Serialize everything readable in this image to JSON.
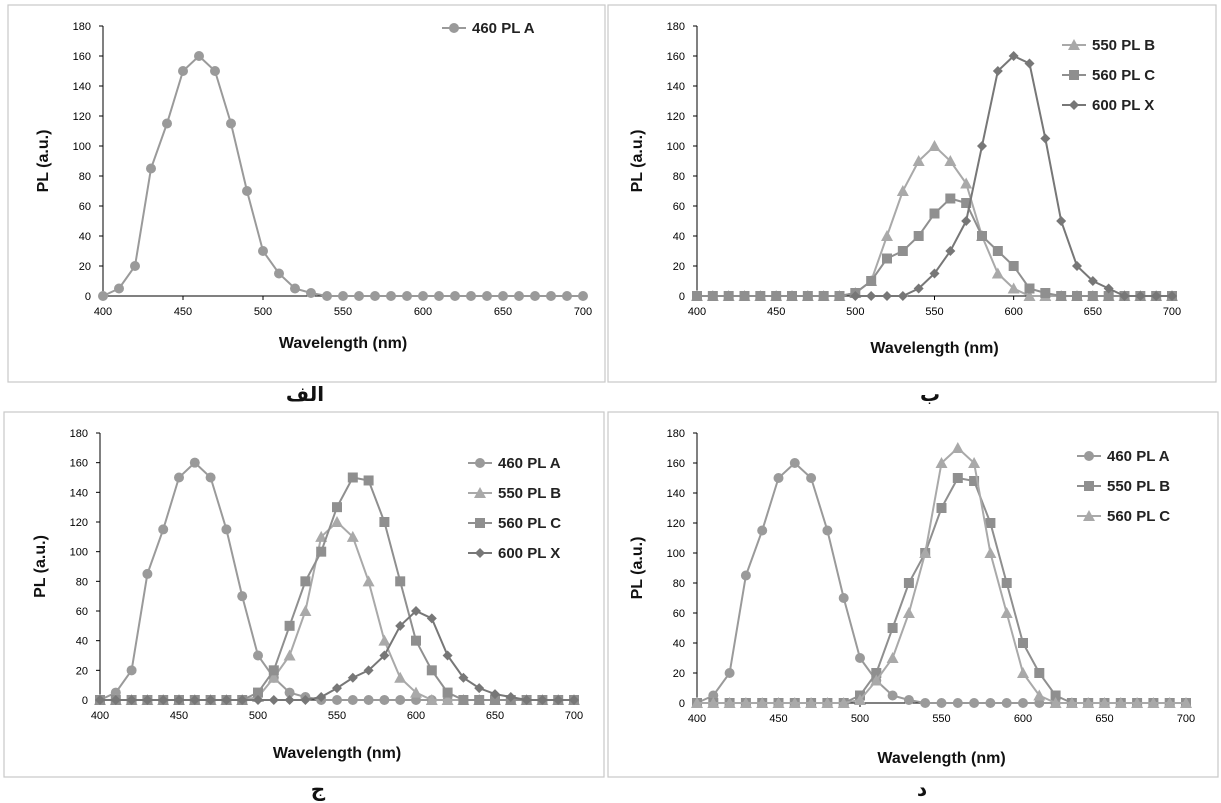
{
  "colors": {
    "series_a": "#9a9a9a",
    "series_b": "#a9a9a9",
    "series_c": "#8f8f8f",
    "series_x": "#777777",
    "frame": "#c8c8c8"
  },
  "chart_data": [
    {
      "type": "line",
      "caption": "الف",
      "xlabel": "Wavelength (nm)",
      "ylabel": "PL (a.u.)",
      "xlim": [
        400,
        700
      ],
      "ylim": [
        0,
        180
      ],
      "xticks": [
        400,
        450,
        500,
        550,
        600,
        650,
        700
      ],
      "yticks": [
        0,
        20,
        40,
        60,
        80,
        100,
        120,
        140,
        160,
        180
      ],
      "legend_position": "top-right",
      "series": [
        {
          "name": "460 PL A",
          "marker": "circle",
          "color_key": "series_a",
          "x": [
            400,
            410,
            420,
            430,
            440,
            450,
            460,
            470,
            480,
            490,
            500,
            510,
            520,
            530,
            540,
            550,
            560,
            570,
            580,
            590,
            600,
            610,
            620,
            630,
            640,
            650,
            660,
            670,
            680,
            690,
            700
          ],
          "y": [
            0,
            5,
            20,
            85,
            115,
            150,
            160,
            150,
            115,
            70,
            30,
            15,
            5,
            2,
            0,
            0,
            0,
            0,
            0,
            0,
            0,
            0,
            0,
            0,
            0,
            0,
            0,
            0,
            0,
            0,
            0
          ]
        }
      ]
    },
    {
      "type": "line",
      "caption": "ب",
      "xlabel": "Wavelength (nm)",
      "ylabel": "PL (a.u.)",
      "xlim": [
        400,
        700
      ],
      "ylim": [
        0,
        180
      ],
      "xticks": [
        400,
        450,
        500,
        550,
        600,
        650,
        700
      ],
      "yticks": [
        0,
        20,
        40,
        60,
        80,
        100,
        120,
        140,
        160,
        180
      ],
      "legend_position": "top-right",
      "series": [
        {
          "name": "550 PL B",
          "marker": "triangle",
          "color_key": "series_b",
          "x": [
            400,
            410,
            420,
            430,
            440,
            450,
            460,
            470,
            480,
            490,
            500,
            510,
            520,
            530,
            540,
            550,
            560,
            570,
            580,
            590,
            600,
            610,
            620,
            630,
            640,
            650,
            660,
            670,
            680,
            690,
            700
          ],
          "y": [
            0,
            0,
            0,
            0,
            0,
            0,
            0,
            0,
            0,
            0,
            2,
            10,
            40,
            70,
            90,
            100,
            90,
            75,
            40,
            15,
            5,
            0,
            0,
            0,
            0,
            0,
            0,
            0,
            0,
            0,
            0
          ]
        },
        {
          "name": "560 PL C",
          "marker": "square",
          "color_key": "series_c",
          "x": [
            400,
            410,
            420,
            430,
            440,
            450,
            460,
            470,
            480,
            490,
            500,
            510,
            520,
            530,
            540,
            550,
            560,
            570,
            580,
            590,
            600,
            610,
            620,
            630,
            640,
            650,
            660,
            670,
            680,
            690,
            700
          ],
          "y": [
            0,
            0,
            0,
            0,
            0,
            0,
            0,
            0,
            0,
            0,
            2,
            10,
            25,
            30,
            40,
            55,
            65,
            62,
            40,
            30,
            20,
            5,
            2,
            0,
            0,
            0,
            0,
            0,
            0,
            0,
            0
          ]
        },
        {
          "name": "600 PL X",
          "marker": "diamond",
          "color_key": "series_x",
          "x": [
            500,
            510,
            520,
            530,
            540,
            550,
            560,
            570,
            580,
            590,
            600,
            610,
            620,
            630,
            640,
            650,
            660,
            670,
            680,
            690,
            700
          ],
          "y": [
            0,
            0,
            0,
            0,
            5,
            15,
            30,
            50,
            100,
            150,
            160,
            155,
            105,
            50,
            20,
            10,
            5,
            0,
            0,
            0,
            0
          ]
        }
      ]
    },
    {
      "type": "line",
      "caption": "ج",
      "xlabel": "Wavelength (nm)",
      "ylabel": "PL (a.u.)",
      "xlim": [
        400,
        700
      ],
      "ylim": [
        0,
        180
      ],
      "xticks": [
        400,
        450,
        500,
        550,
        600,
        650,
        700
      ],
      "yticks": [
        0,
        20,
        40,
        60,
        80,
        100,
        120,
        140,
        160,
        180
      ],
      "legend_position": "top-right",
      "series": [
        {
          "name": "460 PL A",
          "marker": "circle",
          "color_key": "series_a",
          "x": [
            400,
            410,
            420,
            430,
            440,
            450,
            460,
            470,
            480,
            490,
            500,
            510,
            520,
            530,
            540,
            550,
            560,
            570,
            580,
            590,
            600,
            610,
            620,
            630,
            640,
            650,
            660,
            670,
            680,
            690,
            700
          ],
          "y": [
            0,
            5,
            20,
            85,
            115,
            150,
            160,
            150,
            115,
            70,
            30,
            15,
            5,
            2,
            0,
            0,
            0,
            0,
            0,
            0,
            0,
            0,
            0,
            0,
            0,
            0,
            0,
            0,
            0,
            0,
            0
          ]
        },
        {
          "name": "550 PL B",
          "marker": "triangle",
          "color_key": "series_b",
          "x": [
            400,
            410,
            420,
            430,
            440,
            450,
            460,
            470,
            480,
            490,
            500,
            510,
            520,
            530,
            540,
            550,
            560,
            570,
            580,
            590,
            600,
            610,
            620,
            630,
            640,
            650,
            660,
            670,
            680,
            690,
            700
          ],
          "y": [
            0,
            0,
            0,
            0,
            0,
            0,
            0,
            0,
            0,
            0,
            2,
            15,
            30,
            60,
            110,
            120,
            110,
            80,
            40,
            15,
            5,
            0,
            0,
            0,
            0,
            0,
            0,
            0,
            0,
            0,
            0
          ]
        },
        {
          "name": "560 PL C",
          "marker": "square",
          "color_key": "series_c",
          "x": [
            400,
            410,
            420,
            430,
            440,
            450,
            460,
            470,
            480,
            490,
            500,
            510,
            520,
            530,
            540,
            550,
            560,
            570,
            580,
            590,
            600,
            610,
            620,
            630,
            640,
            650,
            660,
            670,
            680,
            690,
            700
          ],
          "y": [
            0,
            0,
            0,
            0,
            0,
            0,
            0,
            0,
            0,
            0,
            5,
            20,
            50,
            80,
            100,
            130,
            150,
            148,
            120,
            80,
            40,
            20,
            5,
            0,
            0,
            0,
            0,
            0,
            0,
            0,
            0
          ]
        },
        {
          "name": "600 PL X",
          "marker": "diamond",
          "color_key": "series_x",
          "x": [
            400,
            410,
            420,
            430,
            440,
            450,
            460,
            470,
            480,
            490,
            500,
            510,
            520,
            530,
            540,
            550,
            560,
            570,
            580,
            590,
            600,
            610,
            620,
            630,
            640,
            650,
            660,
            670,
            680,
            690,
            700
          ],
          "y": [
            0,
            0,
            0,
            0,
            0,
            0,
            0,
            0,
            0,
            0,
            0,
            0,
            0,
            0,
            2,
            8,
            15,
            20,
            30,
            50,
            60,
            55,
            30,
            15,
            8,
            4,
            2,
            0,
            0,
            0,
            0
          ]
        }
      ]
    },
    {
      "type": "line",
      "caption": "د",
      "xlabel": "Wavelength (nm)",
      "ylabel": "PL (a.u.)",
      "xlim": [
        400,
        700
      ],
      "ylim": [
        0,
        180
      ],
      "xticks": [
        400,
        450,
        500,
        550,
        600,
        650,
        700
      ],
      "yticks": [
        0,
        20,
        40,
        60,
        80,
        100,
        120,
        140,
        160,
        180
      ],
      "legend_position": "top-right",
      "series": [
        {
          "name": "460 PL A",
          "marker": "circle",
          "color_key": "series_a",
          "x": [
            400,
            410,
            420,
            430,
            440,
            450,
            460,
            470,
            480,
            490,
            500,
            510,
            520,
            530,
            540,
            550,
            560,
            570,
            580,
            590,
            600,
            610,
            620,
            630,
            640,
            650,
            660,
            670,
            680,
            690,
            700
          ],
          "y": [
            0,
            5,
            20,
            85,
            115,
            150,
            160,
            150,
            115,
            70,
            30,
            15,
            5,
            2,
            0,
            0,
            0,
            0,
            0,
            0,
            0,
            0,
            0,
            0,
            0,
            0,
            0,
            0,
            0,
            0,
            0
          ]
        },
        {
          "name": "550 PL B",
          "marker": "square",
          "color_key": "series_c",
          "x": [
            400,
            410,
            420,
            430,
            440,
            450,
            460,
            470,
            480,
            490,
            500,
            510,
            520,
            530,
            540,
            550,
            560,
            570,
            580,
            590,
            600,
            610,
            620,
            630,
            640,
            650,
            660,
            670,
            680,
            690,
            700
          ],
          "y": [
            0,
            0,
            0,
            0,
            0,
            0,
            0,
            0,
            0,
            0,
            5,
            20,
            50,
            80,
            100,
            130,
            150,
            148,
            120,
            80,
            40,
            20,
            5,
            0,
            0,
            0,
            0,
            0,
            0,
            0,
            0
          ]
        },
        {
          "name": "560 PL C",
          "marker": "triangle",
          "color_key": "series_b",
          "x": [
            400,
            410,
            420,
            430,
            440,
            450,
            460,
            470,
            480,
            490,
            500,
            510,
            520,
            530,
            540,
            550,
            560,
            570,
            580,
            590,
            600,
            610,
            620,
            630,
            640,
            650,
            660,
            670,
            680,
            690,
            700
          ],
          "y": [
            0,
            0,
            0,
            0,
            0,
            0,
            0,
            0,
            0,
            0,
            2,
            15,
            30,
            60,
            100,
            160,
            170,
            160,
            100,
            60,
            20,
            5,
            0,
            0,
            0,
            0,
            0,
            0,
            0,
            0,
            0
          ]
        }
      ]
    }
  ]
}
